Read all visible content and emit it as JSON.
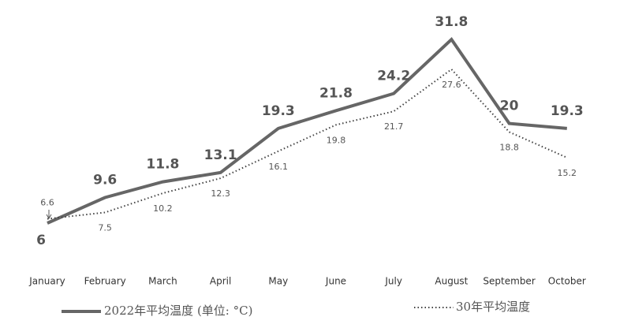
{
  "chart_data": {
    "type": "line",
    "categories": [
      "January",
      "February",
      "March",
      "April",
      "May",
      "June",
      "July",
      "August",
      "September",
      "October"
    ],
    "series": [
      {
        "name": "2022年平均温度 (单位: °C)",
        "color": "#666666",
        "values": [
          6,
          9.6,
          11.8,
          13.1,
          19.3,
          21.8,
          24.2,
          31.8,
          20,
          19.3
        ]
      },
      {
        "name": "30年平均温度",
        "color": "#444444",
        "values": [
          6.6,
          7.5,
          10.2,
          12.3,
          16.1,
          19.8,
          21.7,
          27.6,
          18.8,
          15.2
        ]
      }
    ]
  }
}
